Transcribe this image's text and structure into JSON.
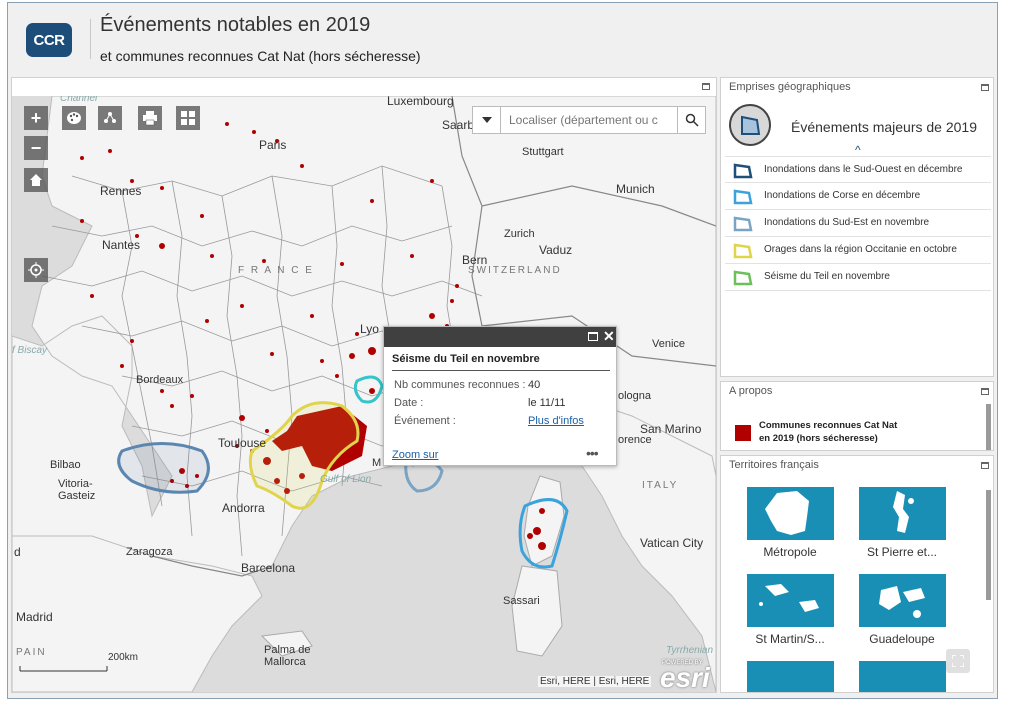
{
  "header": {
    "logo_text": "CCR",
    "title": "Événements notables en 2019",
    "subtitle": "et communes reconnues Cat Nat (hors sécheresse)"
  },
  "map": {
    "search_placeholder": "Localiser (département ou c",
    "labels": {
      "luxembourg": "Luxembourg",
      "saarbrucken": "Saarbruc",
      "paris": "Paris",
      "stuttgart": "Stuttgart",
      "rennes": "Rennes",
      "munich": "Munich",
      "nantes": "Nantes",
      "zurich": "Zurich",
      "vaduz": "Vaduz",
      "bern": "Bern",
      "france": "F R A N C E",
      "switzerland": "SWITZERLAND",
      "lyon": "Lyo",
      "biscay": "f Biscay",
      "venice": "Venice",
      "bordeaux": "Bordeaux",
      "bologna": "ologna",
      "san_marino": "San Marino",
      "florence": "orence",
      "toulouse": "Toulouse",
      "bilbao": "Bilbao",
      "vitoria": "Vitoria-\nGasteiz",
      "gulf": "Gulf of Lion",
      "marseille": "M",
      "italy": "ITALY",
      "andorra": "Andorra",
      "d": "d",
      "zaragoza": "Zaragoza",
      "vatican": "Vatican City",
      "barcelona": "Barcelona",
      "sassari": "Sassari",
      "madrid": "Madrid",
      "spain": "PAIN",
      "palma": "Palma de\nMallorca",
      "tyrrhenian": "Tyrrhenian",
      "channel": "Channel"
    },
    "scale_label": "200km",
    "attribution": "Esri, HERE | Esri, HERE",
    "esri_powered": "POWERED BY",
    "esri_logo": "esri"
  },
  "popup": {
    "title": "Séisme du Teil en novembre",
    "rows": [
      {
        "label": "Nb communes reconnues :",
        "value": "40"
      },
      {
        "label": "Date :",
        "value": "le 11/11"
      },
      {
        "label": "Événement :",
        "value": "Plus d'infos"
      }
    ],
    "zoom_label": "Zoom sur",
    "more_label": "•••"
  },
  "emprises": {
    "panel_title": "Emprises géographiques",
    "layer_title": "Événements majeurs de 2019",
    "items": [
      {
        "label": "Inondations dans le Sud-Ouest en décembre",
        "color": "#1d4f7a"
      },
      {
        "label": "Inondations de Corse en décembre",
        "color": "#3aa3dc"
      },
      {
        "label": "Inondations du Sud-Est en novembre",
        "color": "#7aa4c4"
      },
      {
        "label": "Orages dans la région Occitanie en octobre",
        "color": "#e0d44a"
      },
      {
        "label": "Séisme du Teil en novembre",
        "color": "#6cbf5a"
      }
    ]
  },
  "apropos": {
    "panel_title": "A propos",
    "legend_label": "Communes reconnues Cat Nat\nen 2019 (hors sécheresse)",
    "legend_color": "#b00000"
  },
  "territoires": {
    "panel_title": "Territoires français",
    "tiles": [
      {
        "label": "Métropole"
      },
      {
        "label": "St Pierre et..."
      },
      {
        "label": "St Martin/S..."
      },
      {
        "label": "Guadeloupe"
      }
    ]
  }
}
